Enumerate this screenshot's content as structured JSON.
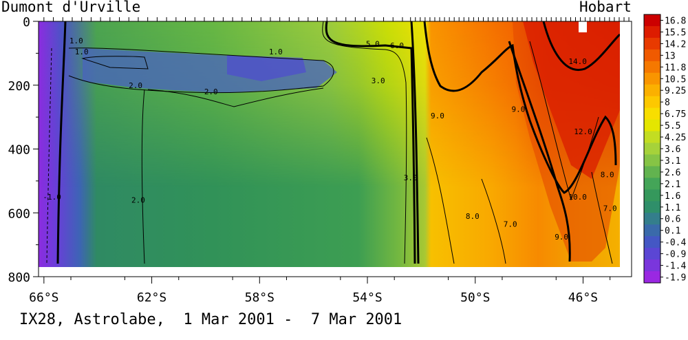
{
  "chart_data": {
    "type": "heatmap",
    "title": "",
    "left_label": "Dumont d'Urville",
    "right_label": "Hobart",
    "caption": "IX28, Astrolabe,  1 Mar 2001 -  7 Mar 2001",
    "xlabel": "",
    "ylabel": "",
    "x_ticks": [
      "66°S",
      "62°S",
      "58°S",
      "54°S",
      "50°S",
      "46°S"
    ],
    "x_tick_values": [
      66,
      62,
      58,
      54,
      50,
      46
    ],
    "xlim": [
      66.2,
      44.2
    ],
    "y_ticks": [
      "0",
      "200",
      "400",
      "600",
      "800"
    ],
    "y_tick_values": [
      0,
      200,
      400,
      600,
      800
    ],
    "ylim": [
      0,
      800
    ],
    "data_max_depth": 760,
    "colorbar_labels": [
      "16.8",
      "15.5",
      "14.2",
      "13",
      "11.8",
      "10.5",
      "9.25",
      "8",
      "6.75",
      "5.5",
      "4.25",
      "3.6",
      "3.1",
      "2.6",
      "2.1",
      "1.6",
      "1.1",
      "0.6",
      "0.1",
      "-0.4",
      "-0.9",
      "-1.4",
      "-1.9"
    ],
    "colorbar_colors": [
      "#cc0000",
      "#dd1c00",
      "#e83a00",
      "#f05a00",
      "#f57800",
      "#f99500",
      "#fbb000",
      "#fdc800",
      "#f8de00",
      "#e4e600",
      "#c3dd22",
      "#a6d23a",
      "#86c445",
      "#62b34f",
      "#44a558",
      "#35985c",
      "#2f8f6a",
      "#347e8c",
      "#3a6aaa",
      "#4457c4",
      "#5b46d4",
      "#7a36dc",
      "#9a28e2"
    ],
    "contour_labels": [
      {
        "text": "1.0",
        "lat": 64.8,
        "depth": 60
      },
      {
        "text": "1.0",
        "lat": 64.6,
        "depth": 95
      },
      {
        "text": "1.0",
        "lat": 57.4,
        "depth": 95
      },
      {
        "text": "2.0",
        "lat": 62.6,
        "depth": 200
      },
      {
        "text": "2.0",
        "lat": 59.8,
        "depth": 220
      },
      {
        "text": "2.0",
        "lat": 62.5,
        "depth": 560
      },
      {
        "text": "-1.0",
        "lat": 65.7,
        "depth": 550
      },
      {
        "text": "3.0",
        "lat": 53.6,
        "depth": 185
      },
      {
        "text": "3.0",
        "lat": 52.4,
        "depth": 490
      },
      {
        "text": "5.0",
        "lat": 53.8,
        "depth": 70
      },
      {
        "text": "6.0",
        "lat": 52.9,
        "depth": 75
      },
      {
        "text": "9.0",
        "lat": 51.4,
        "depth": 295
      },
      {
        "text": "9.0",
        "lat": 48.4,
        "depth": 275
      },
      {
        "text": "9.0",
        "lat": 46.8,
        "depth": 675
      },
      {
        "text": "8.0",
        "lat": 50.1,
        "depth": 610
      },
      {
        "text": "8.0",
        "lat": 45.1,
        "depth": 480
      },
      {
        "text": "7.0",
        "lat": 48.7,
        "depth": 635
      },
      {
        "text": "7.0",
        "lat": 45.0,
        "depth": 585
      },
      {
        "text": "10.0",
        "lat": 46.2,
        "depth": 550
      },
      {
        "text": "12.0",
        "lat": 46.0,
        "depth": 345
      },
      {
        "text": "14.0",
        "lat": 46.2,
        "depth": 125
      }
    ]
  },
  "colors": {
    "frame": "#000000",
    "cold": "#8c2ce0",
    "warm": "#cc0000"
  }
}
